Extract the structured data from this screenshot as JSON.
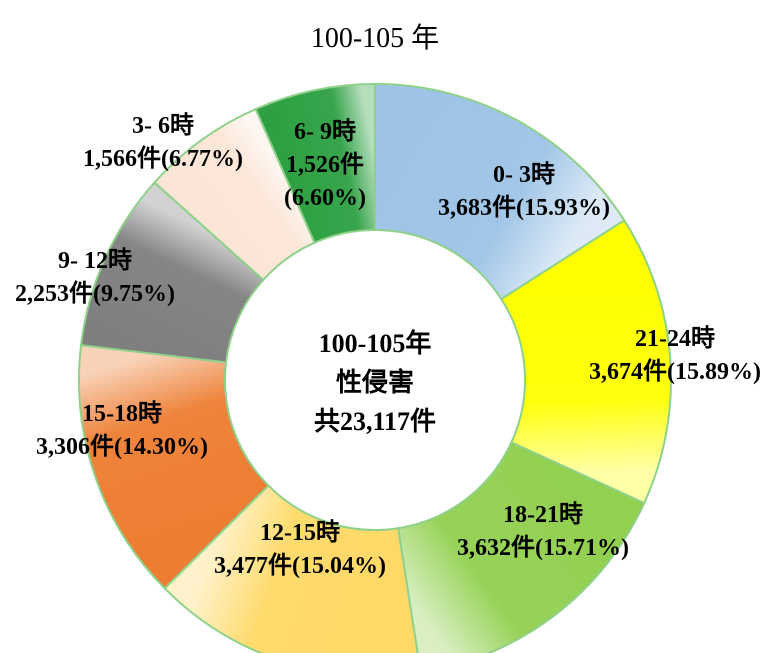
{
  "title": "100-105 年",
  "chart_data": {
    "type": "pie",
    "title": "100-105 年",
    "center_text": [
      "100-105年",
      "性侵害",
      "共23,117件"
    ],
    "slices": [
      {
        "label": "0- 3時",
        "value": 3683,
        "value_text": "3,683件(15.93%)",
        "color": "#9dc3e6",
        "percent": 15.93
      },
      {
        "label": "21-24時",
        "value": 3674,
        "value_text": "3,674件(15.89%)",
        "color": "#ffff00",
        "percent": 15.89
      },
      {
        "label": "18-21時",
        "value": 3632,
        "value_text": "3,632件(15.71%)",
        "color": "#92d050",
        "percent": 15.71
      },
      {
        "label": "12-15時",
        "value": 3477,
        "value_text": "3,477件(15.04%)",
        "color": "#ffd966",
        "percent": 15.04
      },
      {
        "label": "15-18時",
        "value": 3306,
        "value_text": "3,306件(14.30%)",
        "color": "#ed7d31",
        "percent": 14.3
      },
      {
        "label": "9- 12時",
        "value": 2253,
        "value_text": "2,253件(9.75%)",
        "color": "#7f7f7f",
        "percent": 9.75
      },
      {
        "label": "3- 6時",
        "value": 1566,
        "value_text": "1,566件(6.77%)",
        "color": "#fbe5d6",
        "percent": 6.77
      },
      {
        "label": "6- 9時",
        "value": 1526,
        "value_text": "1,526件",
        "value_text2": "(6.60%)",
        "color": "#2ea043",
        "percent": 6.6
      }
    ]
  }
}
